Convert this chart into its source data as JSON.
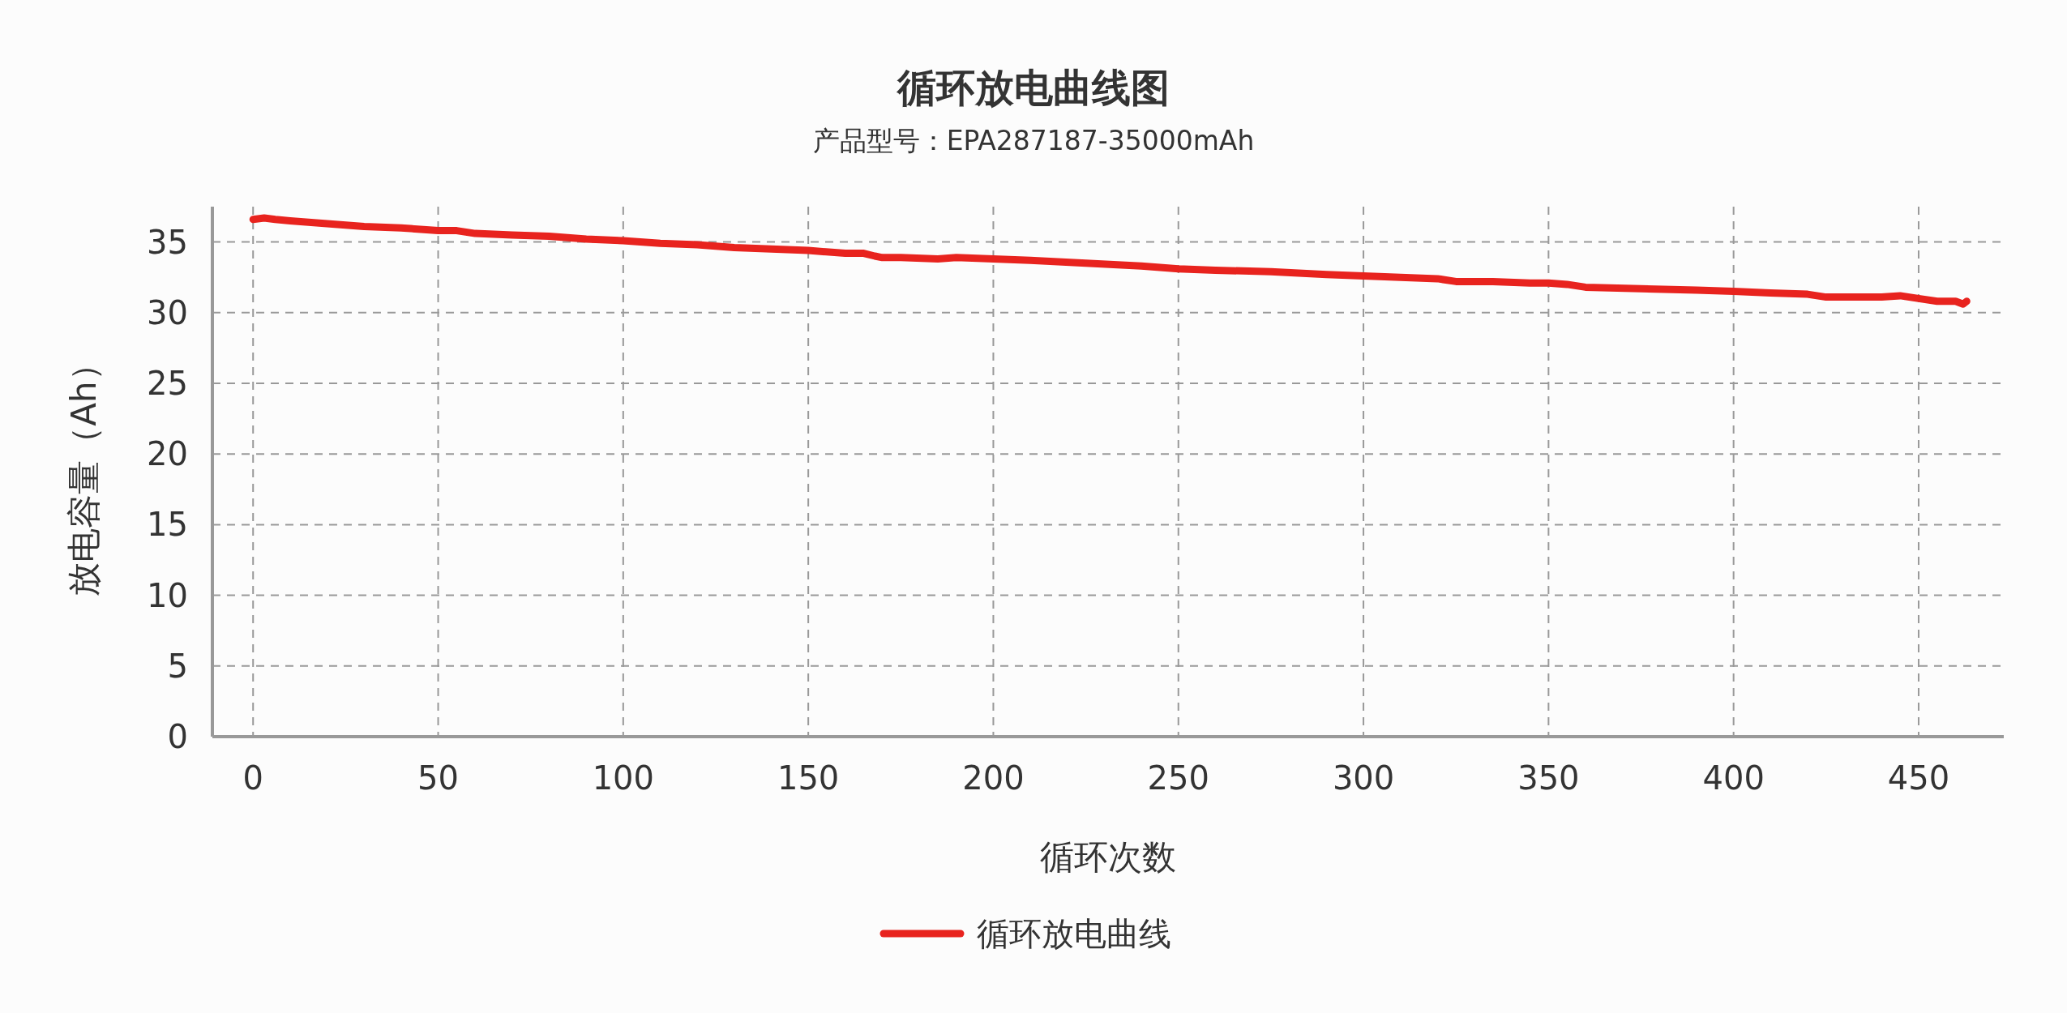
{
  "chart_data": {
    "type": "line",
    "title": "循环放电曲线图",
    "subtitle": "产品型号：EPA287187-35000mAh",
    "xlabel": "循环次数",
    "ylabel": "放电容量（Ah）",
    "xlim": [
      -11,
      473
    ],
    "ylim": [
      0,
      37.5
    ],
    "xticks": [
      0,
      50,
      100,
      150,
      200,
      250,
      300,
      350,
      400,
      450
    ],
    "yticks": [
      0,
      5,
      10,
      15,
      20,
      25,
      30,
      35
    ],
    "grid": true,
    "legend": "bottom",
    "marker": "none",
    "line_style": "solid",
    "series": [
      {
        "name": "循环放电曲线",
        "color": "#e8231e",
        "x": [
          0,
          3,
          6,
          10,
          15,
          20,
          30,
          40,
          50,
          55,
          60,
          70,
          80,
          90,
          100,
          110,
          120,
          130,
          140,
          150,
          160,
          165,
          168,
          170,
          175,
          185,
          190,
          200,
          210,
          225,
          240,
          250,
          260,
          275,
          290,
          300,
          310,
          320,
          325,
          335,
          345,
          350,
          355,
          360,
          375,
          390,
          400,
          410,
          420,
          425,
          430,
          440,
          445,
          450,
          455,
          460,
          462,
          463
        ],
        "values": [
          36.6,
          36.7,
          36.6,
          36.5,
          36.4,
          36.3,
          36.1,
          36.0,
          35.8,
          35.8,
          35.6,
          35.5,
          35.4,
          35.2,
          35.1,
          34.9,
          34.8,
          34.6,
          34.5,
          34.4,
          34.2,
          34.2,
          34.0,
          33.9,
          33.9,
          33.8,
          33.9,
          33.8,
          33.7,
          33.5,
          33.3,
          33.1,
          33.0,
          32.9,
          32.7,
          32.6,
          32.5,
          32.4,
          32.2,
          32.2,
          32.1,
          32.1,
          32.0,
          31.8,
          31.7,
          31.6,
          31.5,
          31.4,
          31.3,
          31.1,
          31.1,
          31.1,
          31.2,
          31.0,
          30.8,
          30.8,
          30.6,
          30.8
        ]
      }
    ]
  }
}
